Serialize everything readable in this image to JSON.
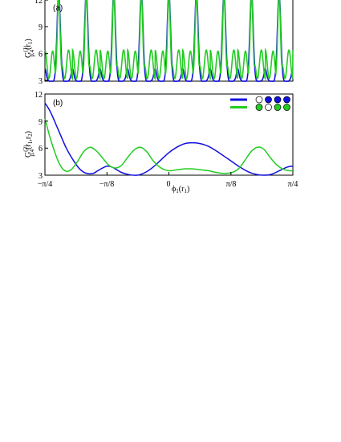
{
  "chart_data": [
    {
      "type": "line",
      "panel_label": "(a)",
      "ylabel": {
        "main": "G",
        "sup": "(1)",
        "sub": "p,4",
        "arg": "(r",
        "argsub": "1",
        "close": ")"
      },
      "ylim": [
        3,
        12
      ],
      "yticks": [
        "3",
        "6",
        "9",
        "12"
      ],
      "periods": 9,
      "series": [
        {
          "color": "#1010e0",
          "curve": "blue_a"
        },
        {
          "color": "#22cc22",
          "curve": "green_a"
        }
      ]
    },
    {
      "type": "line",
      "panel_label": "(b)",
      "ylabel": {
        "main": "G",
        "sup": "(2)",
        "sub": "p,4",
        "arg": "(r",
        "argsub": "1",
        "sep": ",r",
        "argsub2": "2",
        "close": ")"
      },
      "xlabel": {
        "main": "ϕ",
        "sub": "1",
        "arg": "(r",
        "argsub": "1",
        "close": ")"
      },
      "xlim": [
        -0.7854,
        0.7854
      ],
      "ylim": [
        3,
        12
      ],
      "yticks": [
        "3",
        "6",
        "9",
        "12"
      ],
      "xticks": [
        "−π/4",
        "−π/8",
        "0",
        "π/8",
        "π/4"
      ],
      "series": [
        {
          "color": "#1010e0",
          "x": [
            -0.785,
            -0.75,
            -0.7,
            -0.65,
            -0.6,
            -0.56,
            -0.52,
            -0.48,
            -0.45,
            -0.42,
            -0.39,
            -0.36,
            -0.33,
            -0.3,
            -0.25,
            -0.2,
            -0.15,
            -0.1,
            -0.05,
            0.0,
            0.05,
            0.1,
            0.15,
            0.2,
            0.25,
            0.3,
            0.35,
            0.4,
            0.45,
            0.5,
            0.55,
            0.6,
            0.65,
            0.7,
            0.75,
            0.785
          ],
          "y": [
            11.0,
            10.0,
            8.0,
            6.0,
            4.5,
            3.6,
            3.2,
            3.2,
            3.5,
            3.8,
            4.0,
            3.9,
            3.6,
            3.3,
            3.05,
            3.0,
            3.3,
            3.9,
            4.7,
            5.5,
            6.1,
            6.5,
            6.6,
            6.5,
            6.2,
            5.7,
            5.1,
            4.5,
            3.9,
            3.4,
            3.1,
            3.0,
            3.1,
            3.5,
            3.9,
            4.0
          ]
        },
        {
          "color": "#22cc22",
          "x": [
            -0.785,
            -0.75,
            -0.7,
            -0.66,
            -0.62,
            -0.58,
            -0.54,
            -0.5,
            -0.46,
            -0.42,
            -0.38,
            -0.34,
            -0.3,
            -0.26,
            -0.22,
            -0.18,
            -0.14,
            -0.1,
            -0.05,
            0.0,
            0.05,
            0.1,
            0.15,
            0.2,
            0.25,
            0.3,
            0.35,
            0.4,
            0.44,
            0.48,
            0.52,
            0.56,
            0.6,
            0.64,
            0.68,
            0.72,
            0.76,
            0.785
          ],
          "y": [
            9.3,
            7.0,
            4.5,
            3.5,
            3.6,
            4.5,
            5.6,
            6.1,
            5.7,
            4.9,
            4.1,
            3.8,
            4.1,
            5.0,
            5.8,
            6.1,
            5.6,
            4.6,
            3.8,
            3.5,
            3.6,
            3.7,
            3.7,
            3.6,
            3.5,
            3.3,
            3.2,
            3.3,
            3.7,
            4.6,
            5.6,
            6.1,
            5.9,
            5.0,
            4.2,
            3.7,
            3.5,
            3.5
          ]
        }
      ],
      "legend": {
        "position": "top-right",
        "entries": [
          {
            "color": "#1010e0",
            "dots": [
              "open",
              "blue",
              "blue",
              "blue"
            ]
          },
          {
            "color": "#22cc22",
            "dots": [
              "green",
              "open",
              "green",
              "green"
            ]
          }
        ]
      }
    }
  ]
}
